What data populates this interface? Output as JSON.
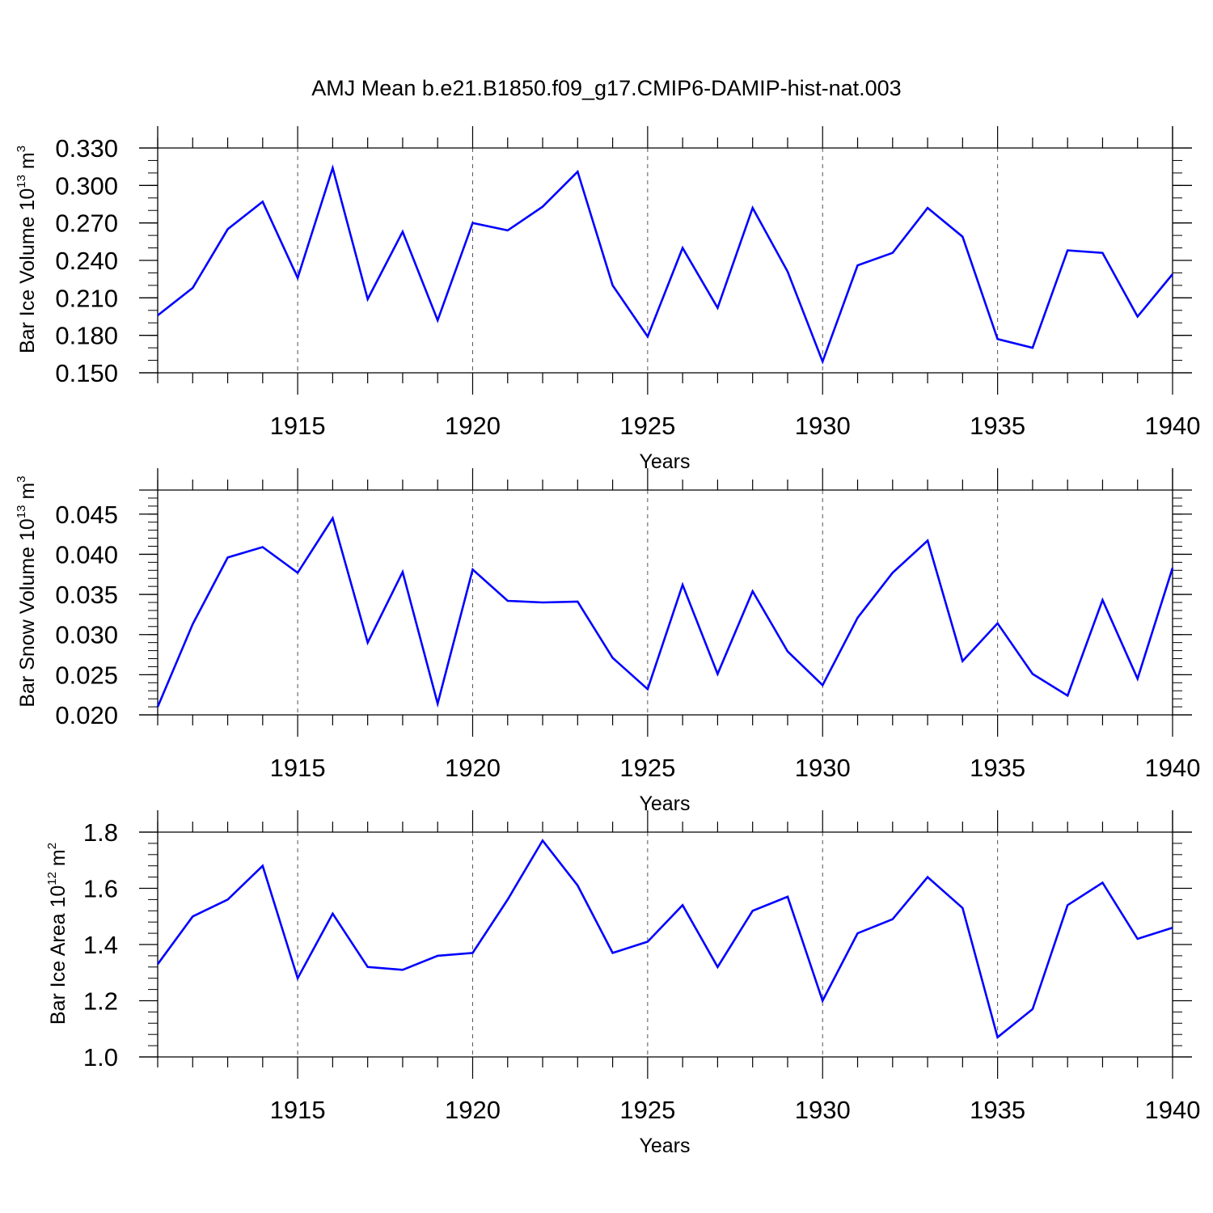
{
  "figure": {
    "title": "AMJ Mean b.e21.B1850.f09_g17.CMIP6-DAMIP-hist-nat.003"
  },
  "colors": {
    "line": "#0000ff",
    "axis": "#000000",
    "grid": "#555555"
  },
  "chart_data": [
    {
      "type": "line",
      "title": "AMJ Mean b.e21.B1850.f09_g17.CMIP6-DAMIP-hist-nat.003",
      "xlabel": "Years",
      "ylabel_main": "Bar Ice Volume 10",
      "ylabel_exp": "13",
      "ylabel_unit": " m",
      "ylabel_unit_exp": "3",
      "xlim": [
        1911,
        1940
      ],
      "ylim": [
        0.15,
        0.33
      ],
      "x_ticks": [
        1915,
        1920,
        1925,
        1930,
        1935,
        1940
      ],
      "x_tick_labels": [
        "1915",
        "1920",
        "1925",
        "1930",
        "1935",
        "1940"
      ],
      "y_ticks": [
        0.15,
        0.18,
        0.21,
        0.24,
        0.27,
        0.3,
        0.33
      ],
      "y_tick_labels": [
        "0.150",
        "0.180",
        "0.210",
        "0.240",
        "0.270",
        "0.300",
        "0.330"
      ],
      "y_minor_step": 0.01,
      "x": [
        1911,
        1912,
        1913,
        1914,
        1915,
        1916,
        1917,
        1918,
        1919,
        1920,
        1921,
        1922,
        1923,
        1924,
        1925,
        1926,
        1927,
        1928,
        1929,
        1930,
        1931,
        1932,
        1933,
        1934,
        1935,
        1936,
        1937,
        1938,
        1939,
        1940
      ],
      "series": [
        {
          "name": "Bar Ice Volume",
          "values": [
            0.196,
            0.218,
            0.265,
            0.287,
            0.226,
            0.314,
            0.209,
            0.263,
            0.192,
            0.27,
            0.264,
            0.283,
            0.311,
            0.22,
            0.179,
            0.25,
            0.202,
            0.282,
            0.231,
            0.159,
            0.236,
            0.246,
            0.282,
            0.259,
            0.177,
            0.17,
            0.248,
            0.246,
            0.195,
            0.229
          ]
        }
      ]
    },
    {
      "type": "line",
      "xlabel": "Years",
      "ylabel_main": "Bar Snow Volume 10",
      "ylabel_exp": "13",
      "ylabel_unit": " m",
      "ylabel_unit_exp": "3",
      "xlim": [
        1911,
        1940
      ],
      "ylim": [
        0.02,
        0.048
      ],
      "x_ticks": [
        1915,
        1920,
        1925,
        1930,
        1935,
        1940
      ],
      "x_tick_labels": [
        "1915",
        "1920",
        "1925",
        "1930",
        "1935",
        "1940"
      ],
      "y_ticks": [
        0.02,
        0.025,
        0.03,
        0.035,
        0.04,
        0.045
      ],
      "y_tick_labels": [
        "0.020",
        "0.025",
        "0.030",
        "0.035",
        "0.040",
        "0.045"
      ],
      "y_minor_step": 0.001,
      "x": [
        1911,
        1912,
        1913,
        1914,
        1915,
        1916,
        1917,
        1918,
        1919,
        1920,
        1921,
        1922,
        1923,
        1924,
        1925,
        1926,
        1927,
        1928,
        1929,
        1930,
        1931,
        1932,
        1933,
        1934,
        1935,
        1936,
        1937,
        1938,
        1939,
        1940
      ],
      "series": [
        {
          "name": "Bar Snow Volume",
          "values": [
            0.021,
            0.0313,
            0.0396,
            0.0409,
            0.0377,
            0.0445,
            0.029,
            0.0378,
            0.0214,
            0.0381,
            0.0342,
            0.034,
            0.0341,
            0.0271,
            0.0232,
            0.0362,
            0.0251,
            0.0354,
            0.0279,
            0.0237,
            0.0321,
            0.0377,
            0.0417,
            0.0267,
            0.0314,
            0.0251,
            0.0224,
            0.0343,
            0.0245,
            0.0383
          ]
        }
      ]
    },
    {
      "type": "line",
      "xlabel": "Years",
      "ylabel_main": "Bar Ice Area 10",
      "ylabel_exp": "12",
      "ylabel_unit": " m",
      "ylabel_unit_exp": "2",
      "xlim": [
        1911,
        1940
      ],
      "ylim": [
        1.0,
        1.8
      ],
      "x_ticks": [
        1915,
        1920,
        1925,
        1930,
        1935,
        1940
      ],
      "x_tick_labels": [
        "1915",
        "1920",
        "1925",
        "1930",
        "1935",
        "1940"
      ],
      "y_ticks": [
        1.0,
        1.2,
        1.4,
        1.6,
        1.8
      ],
      "y_tick_labels": [
        "1.0",
        "1.2",
        "1.4",
        "1.6",
        "1.8"
      ],
      "y_minor_step": 0.04,
      "x": [
        1911,
        1912,
        1913,
        1914,
        1915,
        1916,
        1917,
        1918,
        1919,
        1920,
        1921,
        1922,
        1923,
        1924,
        1925,
        1926,
        1927,
        1928,
        1929,
        1930,
        1931,
        1932,
        1933,
        1934,
        1935,
        1936,
        1937,
        1938,
        1939,
        1940
      ],
      "series": [
        {
          "name": "Bar Ice Area",
          "values": [
            1.33,
            1.5,
            1.56,
            1.68,
            1.28,
            1.51,
            1.32,
            1.31,
            1.36,
            1.37,
            1.56,
            1.77,
            1.61,
            1.37,
            1.41,
            1.54,
            1.32,
            1.52,
            1.57,
            1.2,
            1.44,
            1.49,
            1.64,
            1.53,
            1.07,
            1.17,
            1.54,
            1.62,
            1.42,
            1.46
          ]
        }
      ]
    }
  ]
}
